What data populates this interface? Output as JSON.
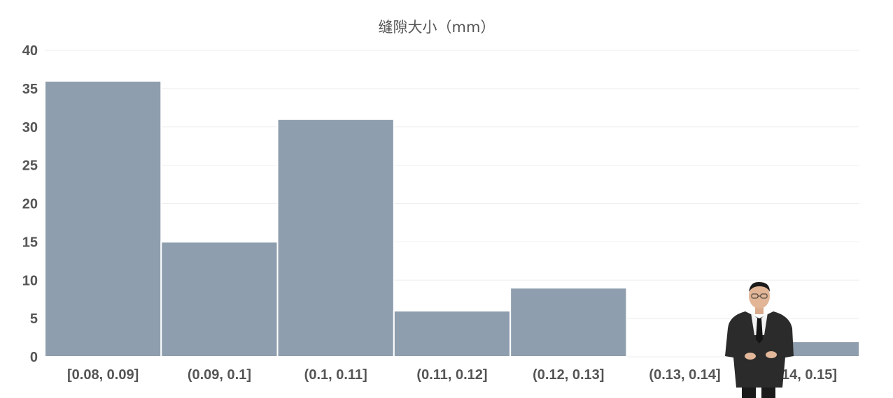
{
  "chart_data": {
    "type": "bar",
    "title": "缝隙大小（mm）",
    "xlabel": "",
    "ylabel": "",
    "categories": [
      "[0.08, 0.09]",
      "(0.09, 0.1]",
      "(0.1, 0.11]",
      "(0.11, 0.12]",
      "(0.12, 0.13]",
      "(0.13, 0.14]",
      "(0.14, 0.15]"
    ],
    "values": [
      36,
      15,
      31,
      6,
      9,
      0,
      2
    ],
    "ylim": [
      0,
      40
    ],
    "yticks": [
      "0",
      "5",
      "10",
      "15",
      "20",
      "25",
      "30",
      "35",
      "40"
    ],
    "grid": true,
    "legend": "none",
    "colors": {
      "bar": "#8e9eae",
      "grid": "#eeeeee",
      "text": "#555555"
    }
  },
  "overlay": {
    "presenter_icon": "presenter-figure"
  }
}
